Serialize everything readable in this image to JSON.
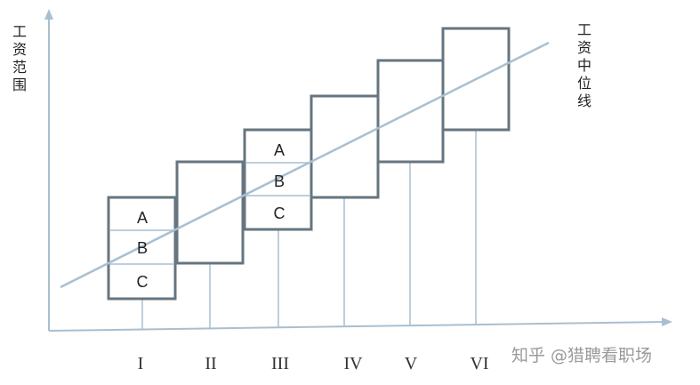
{
  "y_axis_label": [
    "工",
    "资",
    "范",
    "围"
  ],
  "midline_label": [
    "工",
    "资",
    "中",
    "位",
    "线"
  ],
  "categories": [
    "I",
    "II",
    "III",
    "IV",
    "V",
    "VI"
  ],
  "grade_labels_box1": [
    "A",
    "B",
    "C"
  ],
  "grade_labels_box3": [
    "A",
    "B",
    "C"
  ],
  "watermark": "知乎 @猎聘看职场",
  "colors": {
    "axis": "#a9bfd0",
    "box": "#66757f",
    "midline": "#a9bfd0",
    "divider": "#a9bfd0"
  }
}
